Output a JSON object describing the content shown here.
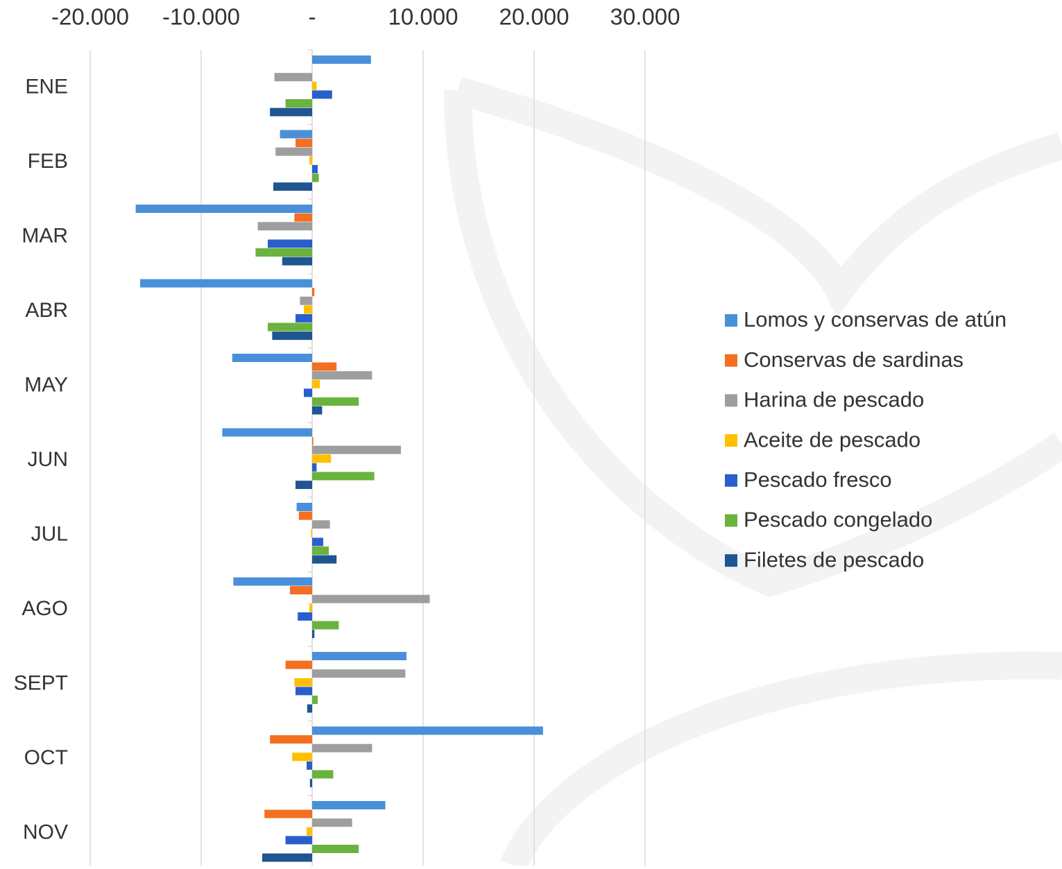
{
  "chart_data": {
    "type": "hbar",
    "categories": [
      "ENE",
      "FEB",
      "MAR",
      "ABR",
      "MAY",
      "JUN",
      "JUL",
      "AGO",
      "SEPT",
      "OCT",
      "NOV"
    ],
    "series": [
      {
        "name": "Lomos y conservas de atún",
        "color": "#4a90d9",
        "values": [
          5300,
          -2900,
          -15900,
          -15500,
          -7200,
          -8100,
          -1400,
          -7100,
          8500,
          20800,
          6600
        ]
      },
      {
        "name": "Conservas de sardinas",
        "color": "#f36f21",
        "values": [
          0,
          -1500,
          -1600,
          200,
          2200,
          100,
          -1200,
          -2000,
          -2400,
          -3800,
          -4300
        ]
      },
      {
        "name": "Harina de pescado",
        "color": "#9e9e9e",
        "values": [
          -3400,
          -3300,
          -4900,
          -1100,
          5400,
          8000,
          1600,
          10600,
          8400,
          5400,
          3600
        ]
      },
      {
        "name": "Aceite de pescado",
        "color": "#ffc000",
        "values": [
          400,
          -250,
          0,
          -750,
          700,
          1700,
          -100,
          -250,
          -1600,
          -1800,
          -500
        ]
      },
      {
        "name": "Pescado fresco",
        "color": "#2a5fcb",
        "values": [
          1800,
          500,
          -4000,
          -1500,
          -750,
          400,
          1000,
          -1300,
          -1500,
          -500,
          -2400
        ]
      },
      {
        "name": "Pescado congelado",
        "color": "#6ab33e",
        "values": [
          -2400,
          600,
          -5100,
          -4000,
          4200,
          5600,
          1500,
          2400,
          500,
          1900,
          4200
        ]
      },
      {
        "name": "Filetes de pescado",
        "color": "#1f5591",
        "values": [
          -3800,
          -3500,
          -2700,
          -3600,
          900,
          -1500,
          2200,
          200,
          -450,
          -200,
          -4500
        ]
      }
    ],
    "xlim": [
      -20000,
      30000
    ],
    "xticks": [
      {
        "value": -20000,
        "label": "-20.000"
      },
      {
        "value": -10000,
        "label": "-10.000"
      },
      {
        "value": 0,
        "label": "-"
      },
      {
        "value": 10000,
        "label": "10.000"
      },
      {
        "value": 20000,
        "label": "20.000"
      },
      {
        "value": 30000,
        "label": "30.000"
      }
    ],
    "grid": true,
    "legend": "right"
  }
}
